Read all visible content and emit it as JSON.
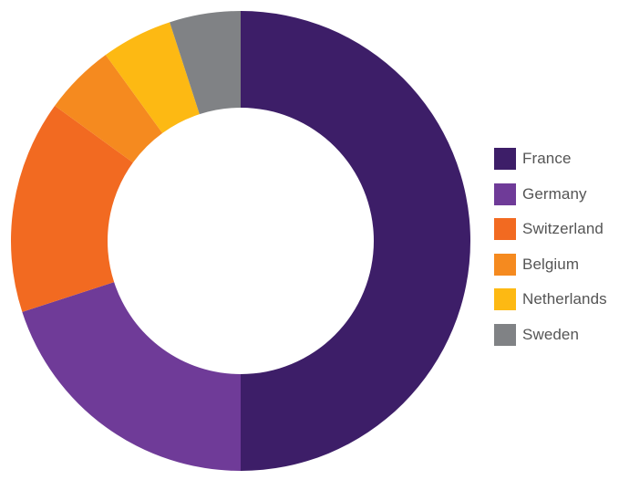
{
  "chart_data": {
    "type": "pie",
    "variant": "donut",
    "title": "",
    "categories": [
      "France",
      "Germany",
      "Switzerland",
      "Belgium",
      "Netherlands",
      "Sweden"
    ],
    "values": [
      50,
      20,
      15,
      5,
      5,
      5
    ],
    "colors": [
      "#3d1e68",
      "#6f3b98",
      "#f26a21",
      "#f58a1f",
      "#fdb913",
      "#808285"
    ],
    "legend": {
      "position": "right",
      "entries": [
        "France",
        "Germany",
        "Switzerland",
        "Belgium",
        "Netherlands",
        "Sweden"
      ]
    },
    "start_angle": "top",
    "direction": "clockwise"
  }
}
